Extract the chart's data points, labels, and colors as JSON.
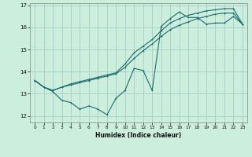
{
  "xlabel": "Humidex (Indice chaleur)",
  "background_color": "#cceedd",
  "grid_color": "#aacccc",
  "line_color": "#1a6b6b",
  "xlim": [
    -0.5,
    23.5
  ],
  "ylim": [
    11.7,
    17.1
  ],
  "yticks": [
    12,
    13,
    14,
    15,
    16,
    17
  ],
  "xticks": [
    0,
    1,
    2,
    3,
    4,
    5,
    6,
    7,
    8,
    9,
    10,
    11,
    12,
    13,
    14,
    15,
    16,
    17,
    18,
    19,
    20,
    21,
    22,
    23
  ],
  "line1_x": [
    0,
    1,
    2,
    3,
    4,
    5,
    6,
    7,
    8,
    9,
    10,
    11,
    12,
    13,
    14,
    15,
    16,
    17,
    18,
    19,
    20,
    21,
    22,
    23
  ],
  "line1_y": [
    13.6,
    13.3,
    13.1,
    12.7,
    12.6,
    12.3,
    12.45,
    12.3,
    12.05,
    12.8,
    13.15,
    14.15,
    14.05,
    13.15,
    16.05,
    16.4,
    16.7,
    16.45,
    16.45,
    16.15,
    16.2,
    16.2,
    16.5,
    16.15
  ],
  "line2_x": [
    0,
    1,
    2,
    3,
    4,
    5,
    6,
    7,
    8,
    9,
    10,
    11,
    12,
    13,
    14,
    15,
    16,
    17,
    18,
    19,
    20,
    21,
    22,
    23
  ],
  "line2_y": [
    13.6,
    13.3,
    13.15,
    13.3,
    13.4,
    13.5,
    13.6,
    13.7,
    13.8,
    13.9,
    14.2,
    14.6,
    14.95,
    15.25,
    15.6,
    15.9,
    16.1,
    16.25,
    16.4,
    16.5,
    16.6,
    16.65,
    16.65,
    16.15
  ],
  "line3_x": [
    0,
    1,
    2,
    3,
    4,
    5,
    6,
    7,
    8,
    9,
    10,
    11,
    12,
    13,
    14,
    15,
    16,
    17,
    18,
    19,
    20,
    21,
    22,
    23
  ],
  "line3_y": [
    13.6,
    13.3,
    13.15,
    13.3,
    13.45,
    13.55,
    13.65,
    13.75,
    13.85,
    13.95,
    14.35,
    14.85,
    15.15,
    15.45,
    15.85,
    16.2,
    16.4,
    16.55,
    16.65,
    16.75,
    16.8,
    16.85,
    16.85,
    16.15
  ]
}
